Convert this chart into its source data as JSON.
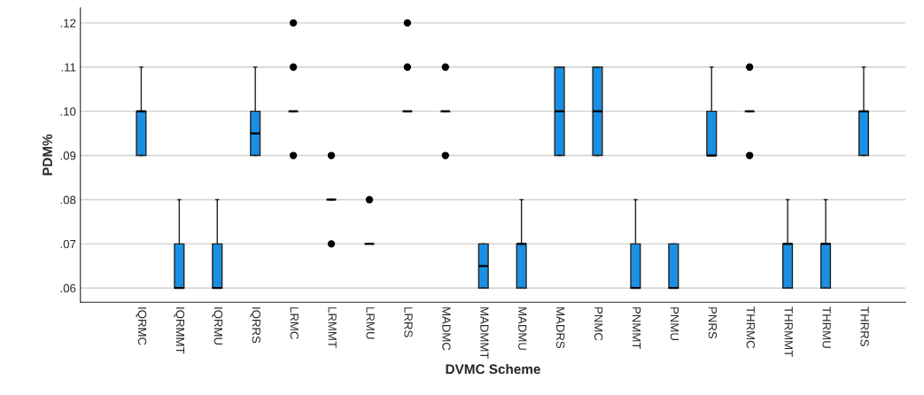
{
  "chart_data": {
    "type": "box",
    "xlabel": "DVMC Scheme",
    "ylabel": "PDM%",
    "categories": [
      "IQRMC",
      "IQRMMT",
      "IQRMU",
      "IQRRS",
      "LRMC",
      "LRMMT",
      "LRMU",
      "LRRS",
      "MADMC",
      "MADMMT",
      "MADMU",
      "MADRS",
      "PNMC",
      "PNMMT",
      "PNMU",
      "PNRS",
      "THRMC",
      "THRMMT",
      "THRMU",
      "THRRS"
    ],
    "color": "#1a8fe3",
    "boxes": [
      {
        "low": 0.09,
        "q1": 0.09,
        "median": 0.1,
        "q3": 0.1,
        "high": 0.11
      },
      {
        "low": 0.06,
        "q1": 0.06,
        "median": 0.06,
        "q3": 0.07,
        "high": 0.08
      },
      {
        "low": 0.06,
        "q1": 0.06,
        "median": 0.06,
        "q3": 0.07,
        "high": 0.08
      },
      {
        "low": 0.09,
        "q1": 0.09,
        "median": 0.095,
        "q3": 0.1,
        "high": 0.11
      },
      {
        "low": 0.1,
        "q1": 0.1,
        "median": 0.1,
        "q3": 0.1,
        "high": 0.1,
        "outliers": [
          0.09,
          0.11,
          0.12
        ]
      },
      {
        "low": 0.08,
        "q1": 0.08,
        "median": 0.08,
        "q3": 0.08,
        "high": 0.08,
        "outliers": [
          0.07,
          0.09
        ]
      },
      {
        "low": 0.07,
        "q1": 0.07,
        "median": 0.07,
        "q3": 0.07,
        "high": 0.07,
        "outliers": [
          0.08
        ]
      },
      {
        "low": 0.1,
        "q1": 0.1,
        "median": 0.1,
        "q3": 0.1,
        "high": 0.1,
        "outliers": [
          0.11,
          0.12
        ]
      },
      {
        "low": 0.1,
        "q1": 0.1,
        "median": 0.1,
        "q3": 0.1,
        "high": 0.1,
        "outliers": [
          0.09,
          0.11
        ]
      },
      {
        "low": 0.06,
        "q1": 0.06,
        "median": 0.065,
        "q3": 0.07,
        "high": 0.07
      },
      {
        "low": 0.06,
        "q1": 0.06,
        "median": 0.07,
        "q3": 0.07,
        "high": 0.08
      },
      {
        "low": 0.09,
        "q1": 0.09,
        "median": 0.1,
        "q3": 0.11,
        "high": 0.11
      },
      {
        "low": 0.09,
        "q1": 0.09,
        "median": 0.1,
        "q3": 0.11,
        "high": 0.11
      },
      {
        "low": 0.06,
        "q1": 0.06,
        "median": 0.06,
        "q3": 0.07,
        "high": 0.08
      },
      {
        "low": 0.06,
        "q1": 0.06,
        "median": 0.06,
        "q3": 0.07,
        "high": 0.07
      },
      {
        "low": 0.09,
        "q1": 0.09,
        "median": 0.09,
        "q3": 0.1,
        "high": 0.11
      },
      {
        "low": 0.1,
        "q1": 0.1,
        "median": 0.1,
        "q3": 0.1,
        "high": 0.1,
        "outliers": [
          0.09,
          0.11
        ]
      },
      {
        "low": 0.06,
        "q1": 0.06,
        "median": 0.07,
        "q3": 0.07,
        "high": 0.08
      },
      {
        "low": 0.06,
        "q1": 0.06,
        "median": 0.07,
        "q3": 0.07,
        "high": 0.08
      },
      {
        "low": 0.09,
        "q1": 0.09,
        "median": 0.1,
        "q3": 0.1,
        "high": 0.11
      }
    ],
    "ylim": [
      0.0568,
      0.1234
    ],
    "yticks": [
      {
        "value": 0.06,
        "label": ".06"
      },
      {
        "value": 0.07,
        "label": ".07"
      },
      {
        "value": 0.08,
        "label": ".08"
      },
      {
        "value": 0.09,
        "label": ".09"
      },
      {
        "value": 0.1,
        "label": ".10"
      },
      {
        "value": 0.11,
        "label": ".11"
      },
      {
        "value": 0.12,
        "label": ".12"
      }
    ],
    "grid": "y",
    "legend": false
  }
}
